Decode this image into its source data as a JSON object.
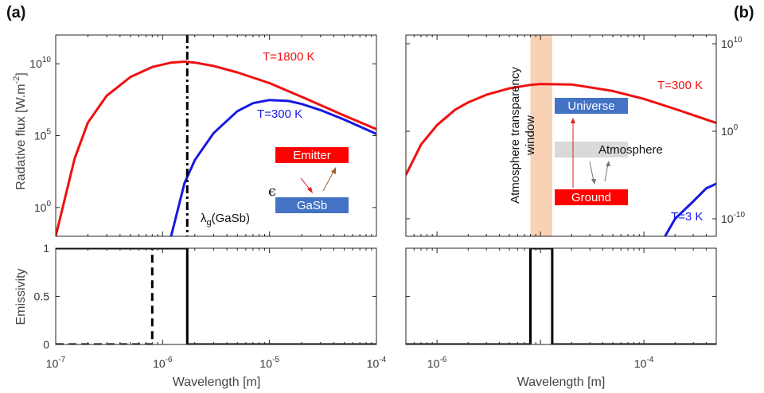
{
  "panel_labels": {
    "a": "(a)",
    "b": "(b)"
  },
  "colors": {
    "red": "#f01010",
    "blue": "#1818e0",
    "black": "#000000",
    "emitter_box": "#ff0000",
    "gasb_box": "#4472c4",
    "universe_box": "#4472c4",
    "ground_box": "#ff0000",
    "atmosphere_box": "#d9d9d9",
    "window_band": "#f8c9a8"
  },
  "annotations": {
    "lambda_symbol": "λ",
    "lambda_sub": "g",
    "lambda_rest": "(GaSb)",
    "epsilon": "ϵ",
    "emitter": "Emitter",
    "gasb": "GaSb",
    "universe": "Universe",
    "atmosphere": "Atmosphere",
    "ground": "Ground",
    "window": "Atmosphere transparency window",
    "window_line1": "Atmosphere transparency",
    "window_line2": "window"
  },
  "chart_data": [
    {
      "id": "a-top",
      "type": "line",
      "xscale": "log",
      "yscale": "log",
      "xlim": [
        1e-07,
        0.0001
      ],
      "ylim": [
        0.01,
        1000000000000.0
      ],
      "ylabel": "Radative flux [W.m-2]",
      "ylabel_main": "Radative flux [W.m",
      "ylabel_sup": "-2",
      "ylabel_end": "]",
      "yticks": [
        "10^0",
        "10^5",
        "10^10"
      ],
      "series": [
        {
          "name": "T=1800 K",
          "color": "#f01010",
          "x": [
            1e-07,
            1.5e-07,
            2e-07,
            3e-07,
            5e-07,
            8e-07,
            1.2e-06,
            1.6e-06,
            2e-06,
            3e-06,
            5e-06,
            1e-05,
            2e-05,
            5e-05,
            0.0001
          ],
          "y": [
            0.01,
            2500.0,
            800000.0,
            60000000.0,
            1200000000.0,
            6000000000.0,
            12000000000.0,
            14000000000.0,
            12000000000.0,
            7000000000.0,
            2500000000.0,
            450000000.0,
            50000000.0,
            2500000.0,
            280000.0
          ]
        },
        {
          "name": "T=300 K",
          "color": "#1818e0",
          "x": [
            1.2e-06,
            1.6e-06,
            2e-06,
            3e-06,
            5e-06,
            7e-06,
            1e-05,
            1.5e-05,
            2e-05,
            3e-05,
            5e-05,
            0.0001
          ],
          "y": [
            0.01,
            50,
            2000.0,
            150000.0,
            5000000.0,
            18000000.0,
            30000000.0,
            26000000.0,
            16000000.0,
            6000000.0,
            1300000.0,
            130000.0
          ]
        }
      ],
      "markers": [
        {
          "x": 1.7e-06,
          "style": "dash-dot",
          "label": "λg(GaSb)"
        }
      ]
    },
    {
      "id": "a-bottom",
      "type": "line",
      "xscale": "log",
      "yscale": "linear",
      "xlim": [
        1e-07,
        0.0001
      ],
      "ylim": [
        0,
        1
      ],
      "ylabel": "Emissivity",
      "xlabel": "Wavelength [m]",
      "yticks": [
        "0",
        "0.5",
        "1"
      ],
      "xticks": [
        "10^-7",
        "10^-6",
        "10^-5",
        "10^-4"
      ],
      "series": [
        {
          "name": "",
          "style": "solid",
          "color": "#000000",
          "x": [
            1e-07,
            1.7e-06,
            1.7e-06,
            0.0001
          ],
          "y": [
            1,
            1,
            0,
            0
          ]
        },
        {
          "name": "",
          "style": "dashed",
          "color": "#000000",
          "x": [
            1e-07,
            8e-07,
            8e-07,
            1.7e-06
          ],
          "y": [
            0,
            0,
            1,
            1
          ]
        }
      ]
    },
    {
      "id": "b-top",
      "type": "line",
      "xscale": "log",
      "yscale": "log",
      "xlim": [
        5e-07,
        0.0005
      ],
      "ylim": [
        1e-12,
        100000000000.0
      ],
      "yaxis_position": "right",
      "yticks": [
        "10^10",
        "10^0",
        "10^-10"
      ],
      "series": [
        {
          "name": "T=300 K",
          "color": "#f01010",
          "x": [
            5e-07,
            7e-07,
            1e-06,
            1.5e-06,
            2e-06,
            3e-06,
            5e-06,
            8e-06,
            1e-05,
            2e-05,
            5e-05,
            0.0001,
            0.0002,
            0.0005
          ],
          "y": [
            1e-05,
            0.03,
            5,
            300.0,
            2000.0,
            15000.0,
            80000.0,
            200000.0,
            250000.0,
            220000.0,
            40000.0,
            5000.0,
            350.0,
            9
          ]
        },
        {
          "name": "T=3 K",
          "color": "#1818e0",
          "x": [
            0.00016,
            0.0002,
            0.0003,
            0.0004,
            0.0005
          ],
          "y": [
            1e-12,
            1e-10,
            1e-08,
            3e-07,
            1e-06
          ]
        }
      ],
      "band": {
        "x": [
          8e-06,
          1.3e-05
        ],
        "label": "Atmosphere transparency window"
      }
    },
    {
      "id": "b-bottom",
      "type": "line",
      "xscale": "log",
      "yscale": "linear",
      "xlim": [
        5e-07,
        0.0005
      ],
      "ylim": [
        0,
        1
      ],
      "xlabel": "Wavelength [m]",
      "xticks": [
        "10^-6",
        "10^-4"
      ],
      "series": [
        {
          "name": "",
          "style": "solid",
          "color": "#000000",
          "x": [
            5e-07,
            8e-06,
            8e-06,
            1.3e-05,
            1.3e-05,
            0.0005
          ],
          "y": [
            0,
            0,
            1,
            1,
            0,
            0
          ]
        }
      ]
    }
  ]
}
